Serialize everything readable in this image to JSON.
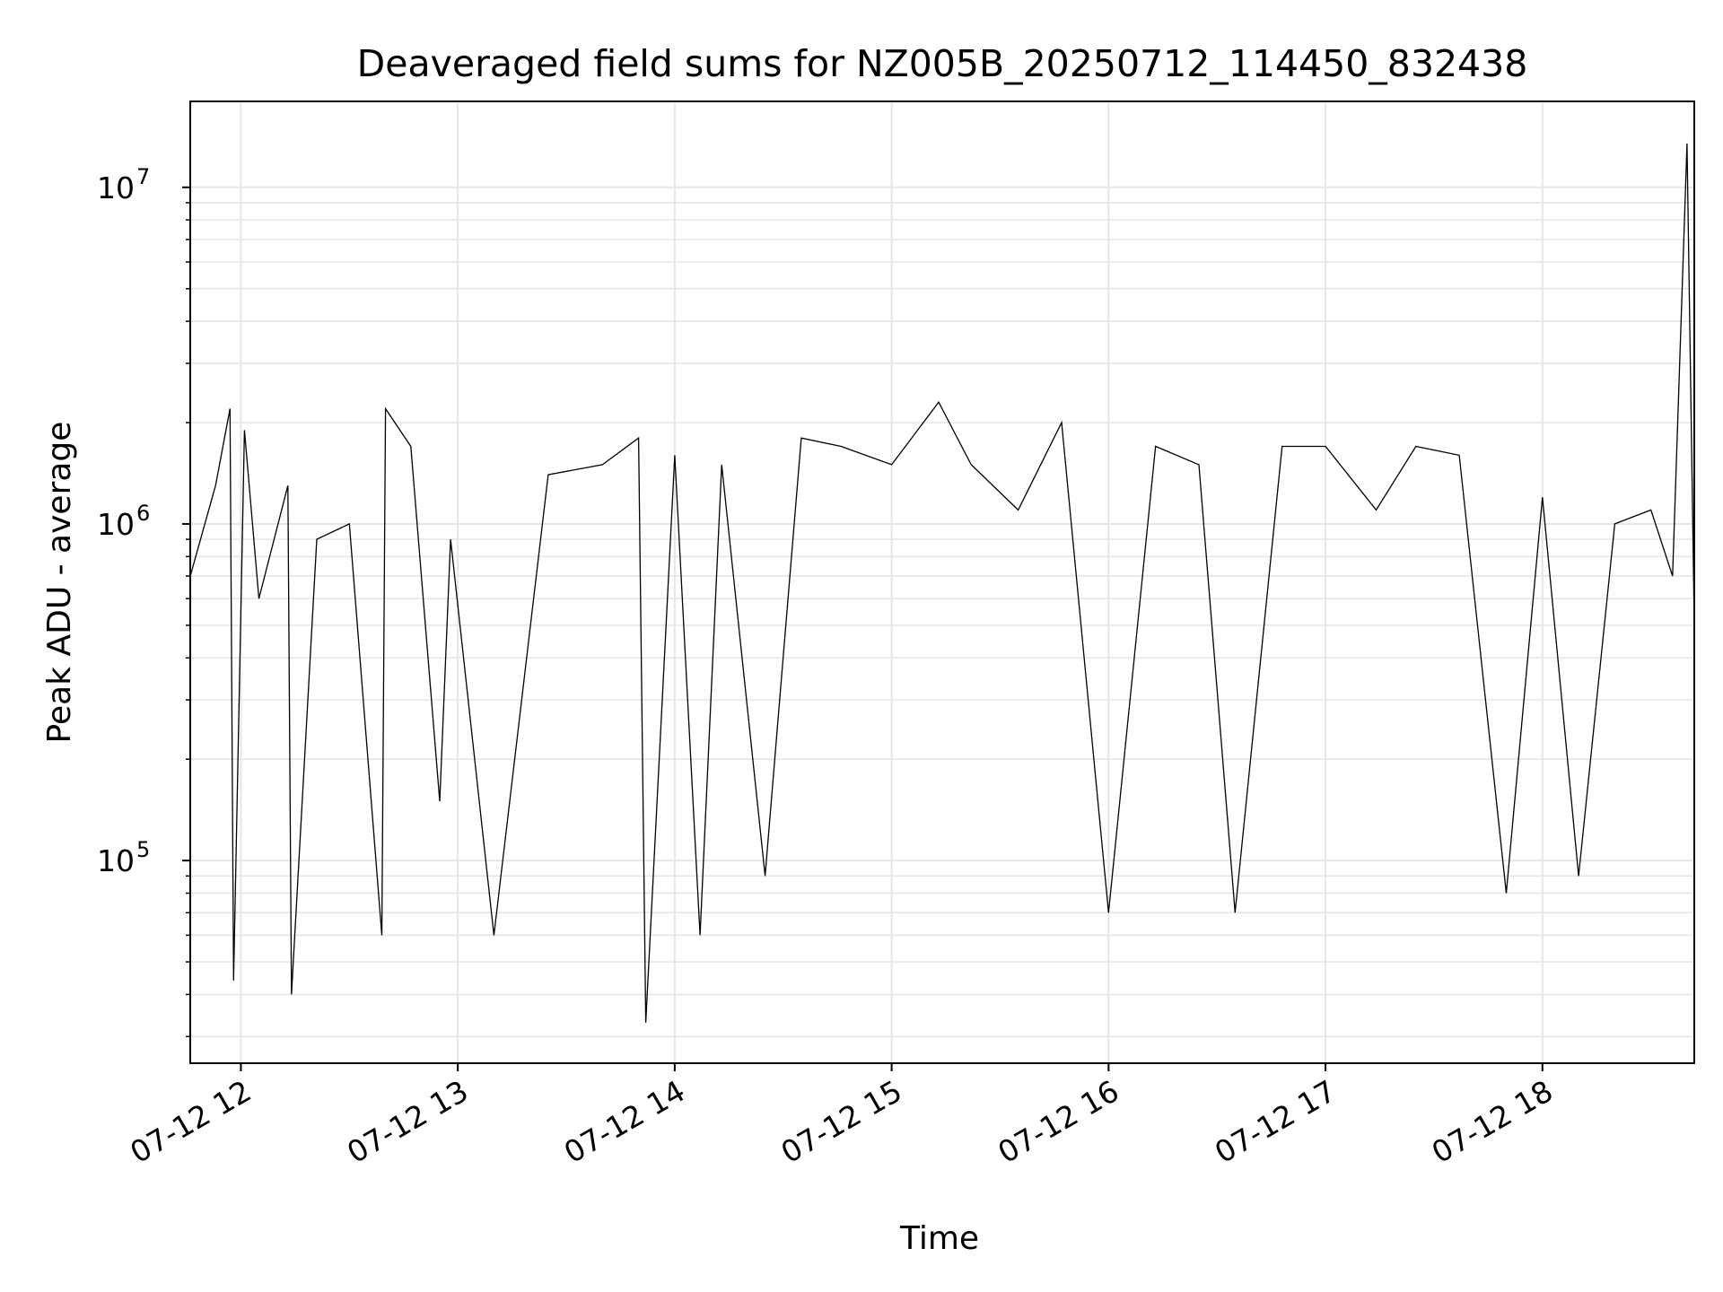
{
  "chart_data": {
    "type": "line",
    "title": "Deaveraged field sums for NZ005B_20250712_114450_832438",
    "xlabel": "Time",
    "ylabel": "Peak ADU - average",
    "y_scale": "log",
    "ylim": [
      25000,
      18000000
    ],
    "xlim": [
      "2025-07-12 11:46",
      "2025-07-12 18:42"
    ],
    "grid": true,
    "line_color": "#000000",
    "grid_color": "#e6e6e6",
    "x_ticks": [
      {
        "value": "2025-07-12 12:00",
        "label": "07-12 12"
      },
      {
        "value": "2025-07-12 13:00",
        "label": "07-12 13"
      },
      {
        "value": "2025-07-12 14:00",
        "label": "07-12 14"
      },
      {
        "value": "2025-07-12 15:00",
        "label": "07-12 15"
      },
      {
        "value": "2025-07-12 16:00",
        "label": "07-12 16"
      },
      {
        "value": "2025-07-12 17:00",
        "label": "07-12 17"
      },
      {
        "value": "2025-07-12 18:00",
        "label": "07-12 18"
      }
    ],
    "y_ticks": [
      {
        "value": 100000,
        "base": "10",
        "exp": "5"
      },
      {
        "value": 1000000,
        "base": "10",
        "exp": "6"
      },
      {
        "value": 10000000,
        "base": "10",
        "exp": "7"
      }
    ],
    "series": [
      {
        "x": [
          "2025-07-12 11:46",
          "2025-07-12 11:53",
          "2025-07-12 11:57",
          "2025-07-12 11:58",
          "2025-07-12 12:01",
          "2025-07-12 12:05",
          "2025-07-12 12:13",
          "2025-07-12 12:14",
          "2025-07-12 12:21",
          "2025-07-12 12:30",
          "2025-07-12 12:39",
          "2025-07-12 12:40",
          "2025-07-12 12:47",
          "2025-07-12 12:55",
          "2025-07-12 12:58",
          "2025-07-12 13:10",
          "2025-07-12 13:25",
          "2025-07-12 13:40",
          "2025-07-12 13:50",
          "2025-07-12 13:52",
          "2025-07-12 14:00",
          "2025-07-12 14:07",
          "2025-07-12 14:13",
          "2025-07-12 14:25",
          "2025-07-12 14:35",
          "2025-07-12 14:46",
          "2025-07-12 15:00",
          "2025-07-12 15:13",
          "2025-07-12 15:22",
          "2025-07-12 15:35",
          "2025-07-12 15:47",
          "2025-07-12 16:00",
          "2025-07-12 16:13",
          "2025-07-12 16:25",
          "2025-07-12 16:35",
          "2025-07-12 16:48",
          "2025-07-12 17:00",
          "2025-07-12 17:14",
          "2025-07-12 17:25",
          "2025-07-12 17:37",
          "2025-07-12 17:50",
          "2025-07-12 18:00",
          "2025-07-12 18:10",
          "2025-07-12 18:20",
          "2025-07-12 18:30",
          "2025-07-12 18:36",
          "2025-07-12 18:40",
          "2025-07-12 18:42"
        ],
        "y": [
          700000,
          1300000,
          2200000,
          44000,
          1900000,
          600000,
          1300000,
          40000,
          900000,
          1000000,
          60000,
          2200000,
          1700000,
          150000,
          900000,
          60000,
          1400000,
          1500000,
          1800000,
          33000,
          1600000,
          60000,
          1500000,
          90000,
          1800000,
          1700000,
          1500000,
          2300000,
          1500000,
          1100000,
          2000000,
          70000,
          1700000,
          1500000,
          70000,
          1700000,
          1700000,
          1100000,
          1700000,
          1600000,
          80000,
          1200000,
          90000,
          1000000,
          1100000,
          700000,
          13500000,
          500000
        ]
      }
    ]
  }
}
